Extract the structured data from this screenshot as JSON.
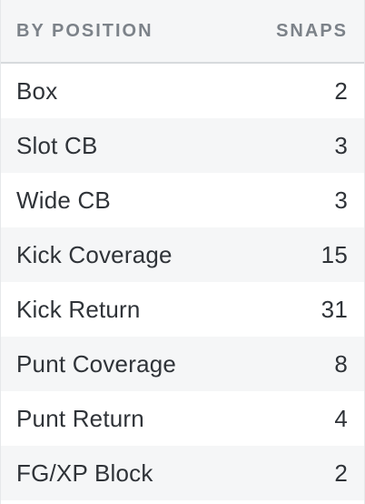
{
  "header": {
    "position_label": "BY POSITION",
    "snaps_label": "SNAPS"
  },
  "rows": [
    {
      "position": "Box",
      "snaps": "2"
    },
    {
      "position": "Slot CB",
      "snaps": "3"
    },
    {
      "position": "Wide CB",
      "snaps": "3"
    },
    {
      "position": "Kick Coverage",
      "snaps": "15"
    },
    {
      "position": "Kick Return",
      "snaps": "31"
    },
    {
      "position": "Punt Coverage",
      "snaps": "8"
    },
    {
      "position": "Punt Return",
      "snaps": "4"
    },
    {
      "position": "FG/XP Block",
      "snaps": "2"
    }
  ]
}
